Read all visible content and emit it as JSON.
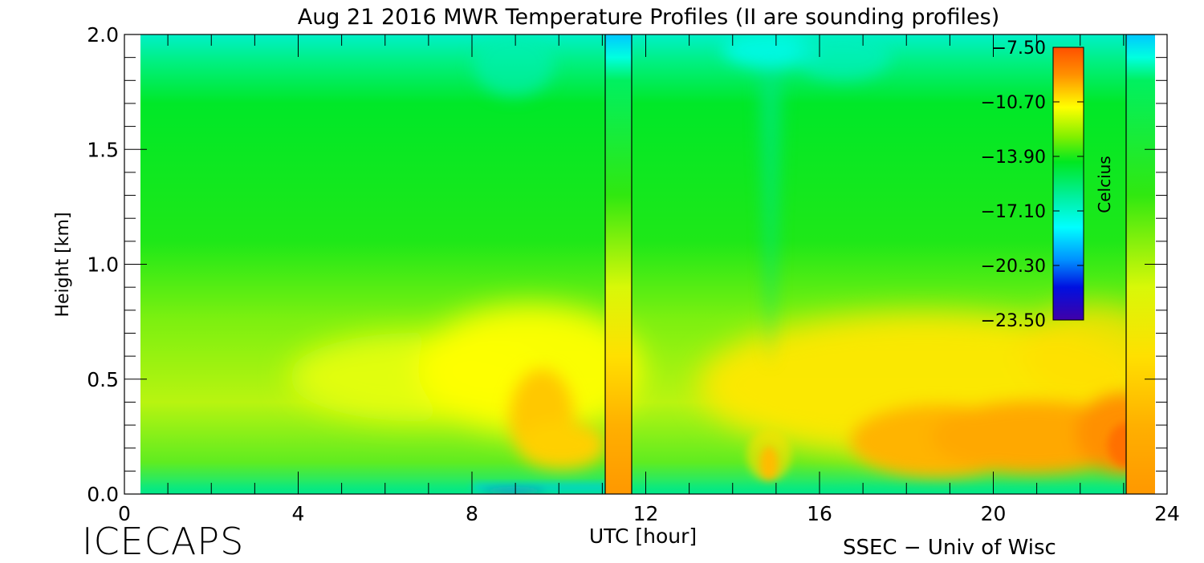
{
  "chart_data": {
    "type": "heatmap",
    "title": "Aug 21 2016 MWR Temperature Profiles (II are sounding profiles)",
    "xlabel": "UTC [hour]",
    "ylabel": "Height [km]",
    "xlim": [
      0,
      24
    ],
    "ylim": [
      0,
      2.0
    ],
    "x_ticks": [
      "0",
      "4",
      "8",
      "12",
      "16",
      "20",
      "24"
    ],
    "y_ticks": [
      "0.0",
      "0.5",
      "1.0",
      "1.5",
      "2.0"
    ],
    "data_x_range": [
      0.33,
      23.75
    ],
    "colorbar": {
      "label": "Celcius",
      "ticks": [
        "−7.50",
        "−10.70",
        "−13.90",
        "−17.10",
        "−20.30",
        "−23.50"
      ],
      "range": [
        -23.5,
        -7.5
      ]
    },
    "sounding_profiles": [
      {
        "x_start": 11.1,
        "x_end": 11.7
      },
      {
        "x_start": 23.1,
        "x_end": 23.75
      }
    ],
    "colors": {
      "t_minus_7_5": "#ff5a00",
      "t_minus_10": "#ffff00",
      "t_minus_14": "#00e81a",
      "t_minus_17": "#00ffff",
      "t_minus_23_5": "#3a00b8"
    }
  },
  "footer": {
    "left_text": "ICECAPS",
    "right_text": "SSEC − Univ of Wisc"
  }
}
